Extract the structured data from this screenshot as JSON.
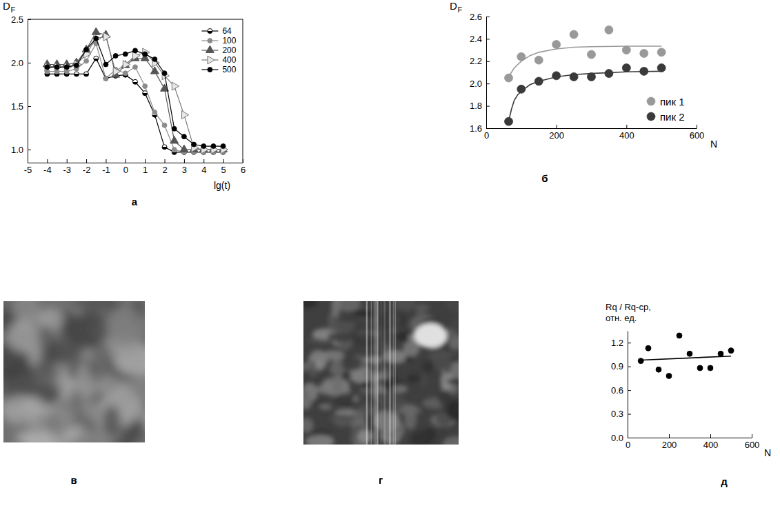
{
  "chart_data": [
    {
      "panel": "а",
      "type": "line",
      "y_label": "D",
      "y_label_sub": "F",
      "x_label": "lg(t)",
      "xlim": [
        -5,
        6
      ],
      "xticks": [
        -5,
        -4,
        -3,
        -2,
        -1,
        0,
        1,
        2,
        3,
        4,
        5,
        6
      ],
      "ylim": [
        0.85,
        2.5
      ],
      "yticks": [
        {
          "value": 1,
          "label": "1.0"
        },
        1.5,
        {
          "value": 2,
          "label": "2.0"
        },
        2.5
      ],
      "legend": "upper right",
      "x": [
        -4,
        -3.5,
        -3,
        -2.5,
        -2,
        -1.5,
        -1,
        -0.5,
        0,
        0.5,
        1,
        1.5,
        2,
        2.5,
        3,
        3.5,
        4,
        4.5,
        5
      ],
      "series": [
        {
          "name": "64",
          "color": "#000000",
          "marker": "circle-half",
          "values": [
            1.87,
            1.87,
            1.87,
            1.87,
            1.87,
            2.05,
            1.82,
            1.85,
            1.86,
            1.78,
            1.65,
            1.4,
            1.03,
            0.97,
            0.97,
            0.97,
            0.97,
            0.97,
            0.97
          ]
        },
        {
          "name": "100",
          "color": "#8c8c8c",
          "marker": "circle",
          "values": [
            1.9,
            1.9,
            1.9,
            1.93,
            2.02,
            2.22,
            1.82,
            1.92,
            1.88,
            1.95,
            1.73,
            1.43,
            1.28,
            1.0,
            0.97,
            0.97,
            0.97,
            0.97,
            0.97
          ]
        },
        {
          "name": "200",
          "color": "#555555",
          "marker": "triangle",
          "values": [
            1.98,
            1.98,
            1.98,
            2.0,
            2.15,
            2.35,
            2.32,
            1.86,
            1.97,
            2.05,
            2.05,
            1.9,
            1.7,
            1.1,
            1.0,
            1.0,
            1.0,
            1.0,
            1.0
          ]
        },
        {
          "name": "400",
          "color": "#777777",
          "marker": "triangle-right",
          "values": [
            1.95,
            1.95,
            1.95,
            1.98,
            2.1,
            2.28,
            2.3,
            1.9,
            1.98,
            2.08,
            2.12,
            2.0,
            1.85,
            1.73,
            1.4,
            1.02,
            1.0,
            1.0,
            1.0
          ]
        },
        {
          "name": "500",
          "color": "#000000",
          "marker": "circle",
          "values": [
            1.95,
            1.95,
            1.95,
            1.97,
            2.15,
            2.28,
            1.98,
            2.08,
            2.1,
            2.14,
            2.1,
            2.04,
            1.88,
            1.24,
            1.15,
            1.06,
            1.04,
            1.04,
            1.04
          ]
        }
      ]
    },
    {
      "panel": "б",
      "type": "scatter",
      "y_label": "D",
      "y_label_sub": "F",
      "x_label": "N",
      "xlim": [
        0,
        600
      ],
      "xticks": [
        0,
        200,
        400,
        600
      ],
      "ylim": [
        1.6,
        2.6
      ],
      "yticks": [
        1.6,
        1.8,
        {
          "value": 2,
          "label": "2.0"
        },
        2.2,
        2.4,
        2.6
      ],
      "legend": "lower right",
      "x": [
        64,
        100,
        150,
        200,
        250,
        300,
        350,
        400,
        450,
        500
      ],
      "series": [
        {
          "name": "пик 1",
          "color": "#999999",
          "marker": "circle",
          "values": [
            2.05,
            2.24,
            2.21,
            2.35,
            2.44,
            2.26,
            2.48,
            2.3,
            2.27,
            2.28
          ],
          "fit": {
            "x": [
              64,
              80,
              100,
              125,
              150,
              200,
              250,
              300,
              400,
              500
            ],
            "values": [
              2.06,
              2.14,
              2.2,
              2.25,
              2.28,
              2.31,
              2.325,
              2.33,
              2.335,
              2.335
            ]
          }
        },
        {
          "name": "пик 2",
          "color": "#3a3a3a",
          "marker": "circle",
          "values": [
            1.66,
            1.95,
            2.02,
            2.07,
            2.06,
            2.06,
            2.09,
            2.14,
            2.11,
            2.14
          ],
          "fit": {
            "x": [
              64,
              72,
              80,
              90,
              100,
              125,
              150,
              200,
              250,
              300,
              400,
              500
            ],
            "values": [
              1.66,
              1.77,
              1.85,
              1.9,
              1.93,
              1.99,
              2.02,
              2.06,
              2.08,
              2.09,
              2.105,
              2.11
            ]
          }
        }
      ]
    },
    {
      "panel": "в",
      "type": "image"
    },
    {
      "panel": "г",
      "type": "image"
    },
    {
      "panel": "д",
      "type": "scatter",
      "y_label": [
        "Rq / Rq-ср,",
        "отн. ед."
      ],
      "x_label": "N",
      "xlim": [
        0,
        600
      ],
      "xticks": [
        0,
        200,
        400,
        600
      ],
      "ylim": [
        0,
        1.35
      ],
      "yticks": [
        {
          "value": 0,
          "label": "0.0"
        },
        0.3,
        0.6,
        0.9,
        1.2
      ],
      "x": [
        64,
        100,
        150,
        200,
        250,
        300,
        350,
        400,
        450,
        500
      ],
      "series": [
        {
          "color": "#000000",
          "marker": "circle",
          "values": [
            0.97,
            1.13,
            0.86,
            0.78,
            1.29,
            1.06,
            0.88,
            0.88,
            1.06,
            1.1
          ],
          "fit": {
            "x": [
              64,
              500
            ],
            "values": [
              0.98,
              1.03
            ]
          }
        }
      ]
    }
  ]
}
